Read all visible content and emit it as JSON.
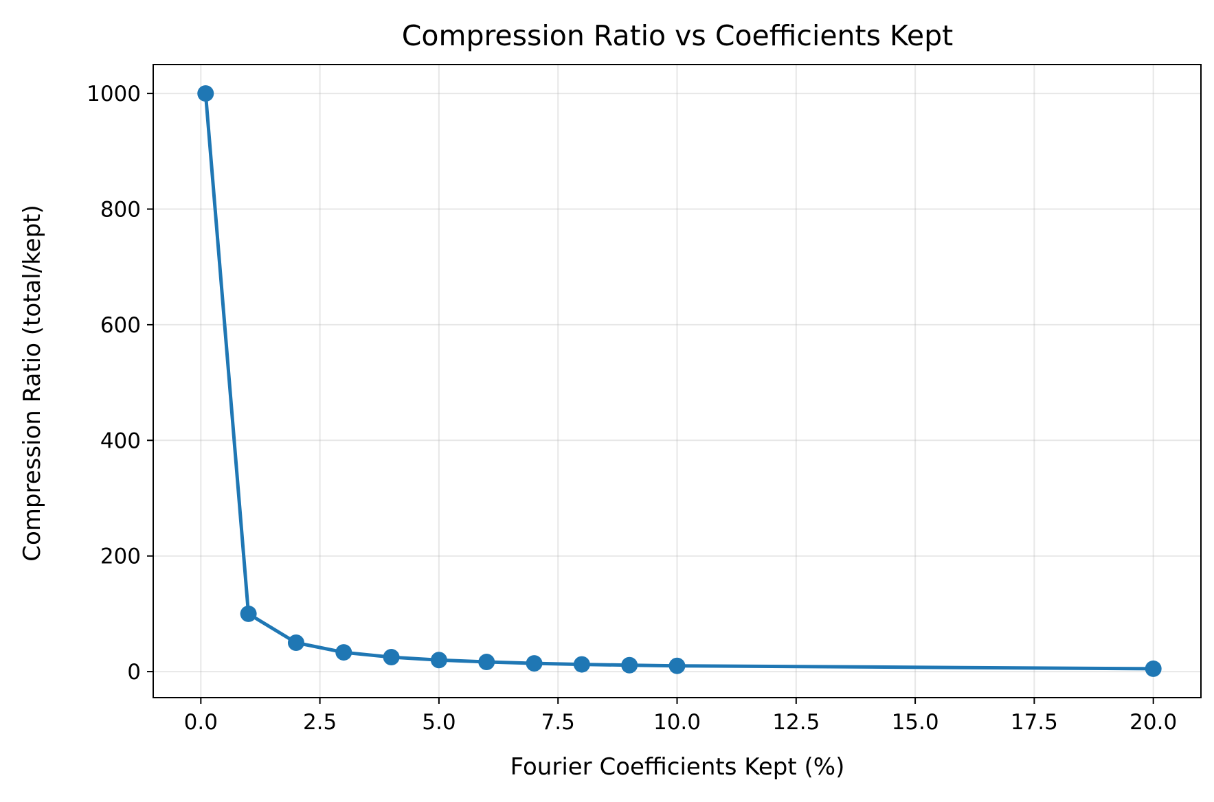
{
  "chart_data": {
    "type": "line",
    "title": "Compression Ratio vs Coefficients Kept",
    "xlabel": "Fourier Coefficients Kept (%)",
    "ylabel": "Compression Ratio (total/kept)",
    "xlim": [
      -1.0,
      21.0
    ],
    "ylim": [
      -45,
      1050
    ],
    "xticks": [
      0.0,
      2.5,
      5.0,
      7.5,
      10.0,
      12.5,
      15.0,
      17.5,
      20.0
    ],
    "xtick_labels": [
      "0.0",
      "2.5",
      "5.0",
      "7.5",
      "10.0",
      "12.5",
      "15.0",
      "17.5",
      "20.0"
    ],
    "yticks": [
      0,
      200,
      400,
      600,
      800,
      1000
    ],
    "ytick_labels": [
      "0",
      "200",
      "400",
      "600",
      "800",
      "1000"
    ],
    "grid": true,
    "series": [
      {
        "color": "#1f77b4",
        "marker": "circle",
        "x": [
          0.1,
          1,
          2,
          3,
          4,
          5,
          6,
          7,
          8,
          9,
          10,
          20
        ],
        "y": [
          1000,
          100,
          50,
          33.3,
          25,
          20,
          16.7,
          14.3,
          12.5,
          11.1,
          10,
          5
        ]
      }
    ]
  }
}
